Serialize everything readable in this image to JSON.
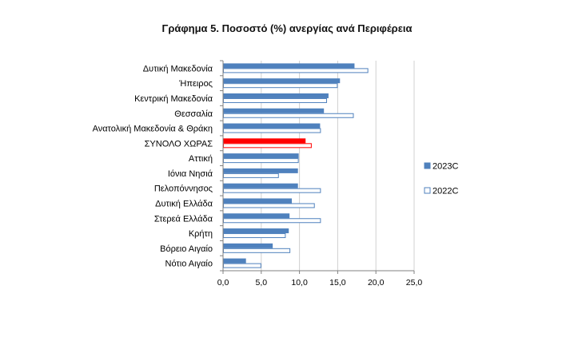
{
  "chart_data": {
    "type": "bar",
    "orientation": "horizontal",
    "title": "Γράφημα 5. Ποσοστό (%) ανεργίας ανά Περιφέρεια",
    "categories": [
      "Δυτική Μακεδονία",
      "Ήπειρος",
      "Κεντρική Μακεδονία",
      "Θεσσαλία",
      "Ανατολική Μακεδονία & Θράκη",
      "ΣΥΝΟΛΟ ΧΩΡΑΣ",
      "Αττική",
      "Ιόνια Νησιά",
      "Πελοπόννησος",
      "Δυτική Ελλάδα",
      "Στερεά Ελλάδα",
      "Κρήτη",
      "Βόρειο Αιγαίο",
      "Νότιο Αιγαίο"
    ],
    "series": [
      {
        "name": "2023C",
        "color": "#4f81bd",
        "highlight_color": "#ff0000",
        "values": [
          17.2,
          15.3,
          13.8,
          13.2,
          12.7,
          10.8,
          9.9,
          9.8,
          9.8,
          9.0,
          8.7,
          8.6,
          6.5,
          3.0
        ]
      },
      {
        "name": "2022C",
        "color": "#ffffff",
        "border_color": "#4f81bd",
        "highlight_border_color": "#ff0000",
        "values": [
          19.0,
          15.0,
          13.6,
          17.1,
          12.8,
          11.6,
          9.9,
          7.3,
          12.8,
          12.0,
          12.8,
          8.2,
          8.8,
          5.0
        ]
      }
    ],
    "highlight_category": "ΣΥΝΟΛΟ ΧΩΡΑΣ",
    "xlim": [
      0,
      25
    ],
    "xticks": [
      "0,0",
      "5,0",
      "10,0",
      "15,0",
      "20,0",
      "25,0"
    ],
    "grid": true,
    "legend_position": "right"
  }
}
